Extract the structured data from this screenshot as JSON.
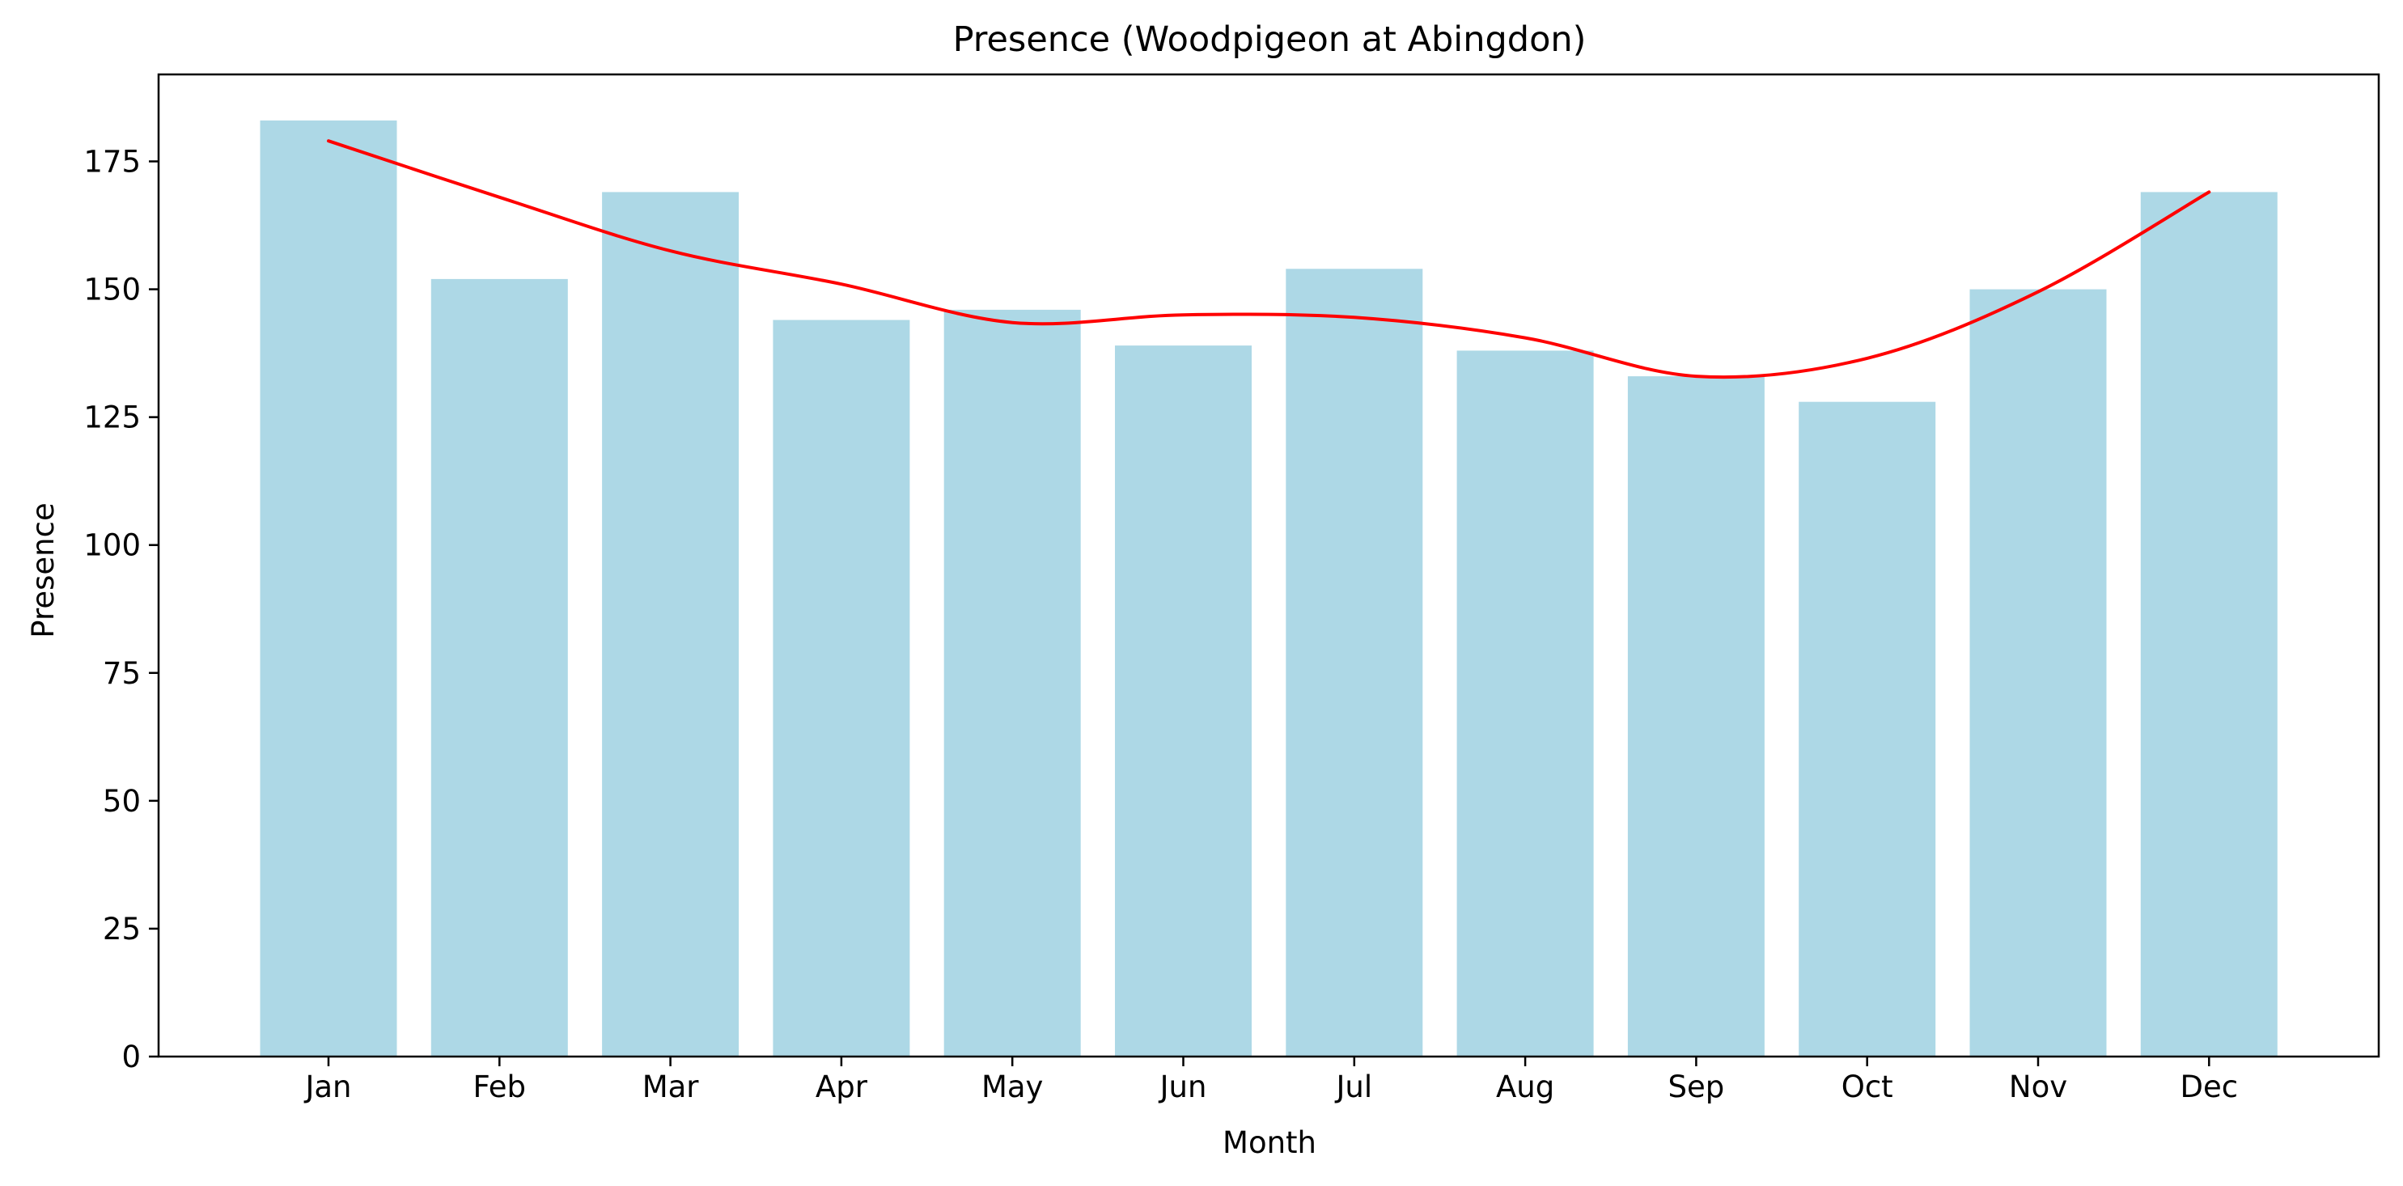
{
  "chart_data": {
    "type": "bar",
    "title": "Presence (Woodpigeon at Abingdon)",
    "xlabel": "Month",
    "ylabel": "Presence",
    "categories": [
      "Jan",
      "Feb",
      "Mar",
      "Apr",
      "May",
      "Jun",
      "Jul",
      "Aug",
      "Sep",
      "Oct",
      "Nov",
      "Dec"
    ],
    "series": [
      {
        "type": "bar",
        "values": [
          183,
          152,
          169,
          144,
          146,
          139,
          154,
          138,
          133,
          128,
          150,
          169
        ]
      },
      {
        "type": "line",
        "values": [
          179,
          168,
          157.5,
          151,
          143.5,
          145,
          144.5,
          140.5,
          133,
          136.5,
          149.5,
          169
        ]
      }
    ],
    "ylim": [
      0,
      192
    ],
    "yticks": [
      0,
      25,
      50,
      75,
      100,
      125,
      150,
      175
    ],
    "grid": false,
    "colors": {
      "bar": "#add8e6",
      "line": "#ff0000",
      "axis": "#000000"
    }
  }
}
